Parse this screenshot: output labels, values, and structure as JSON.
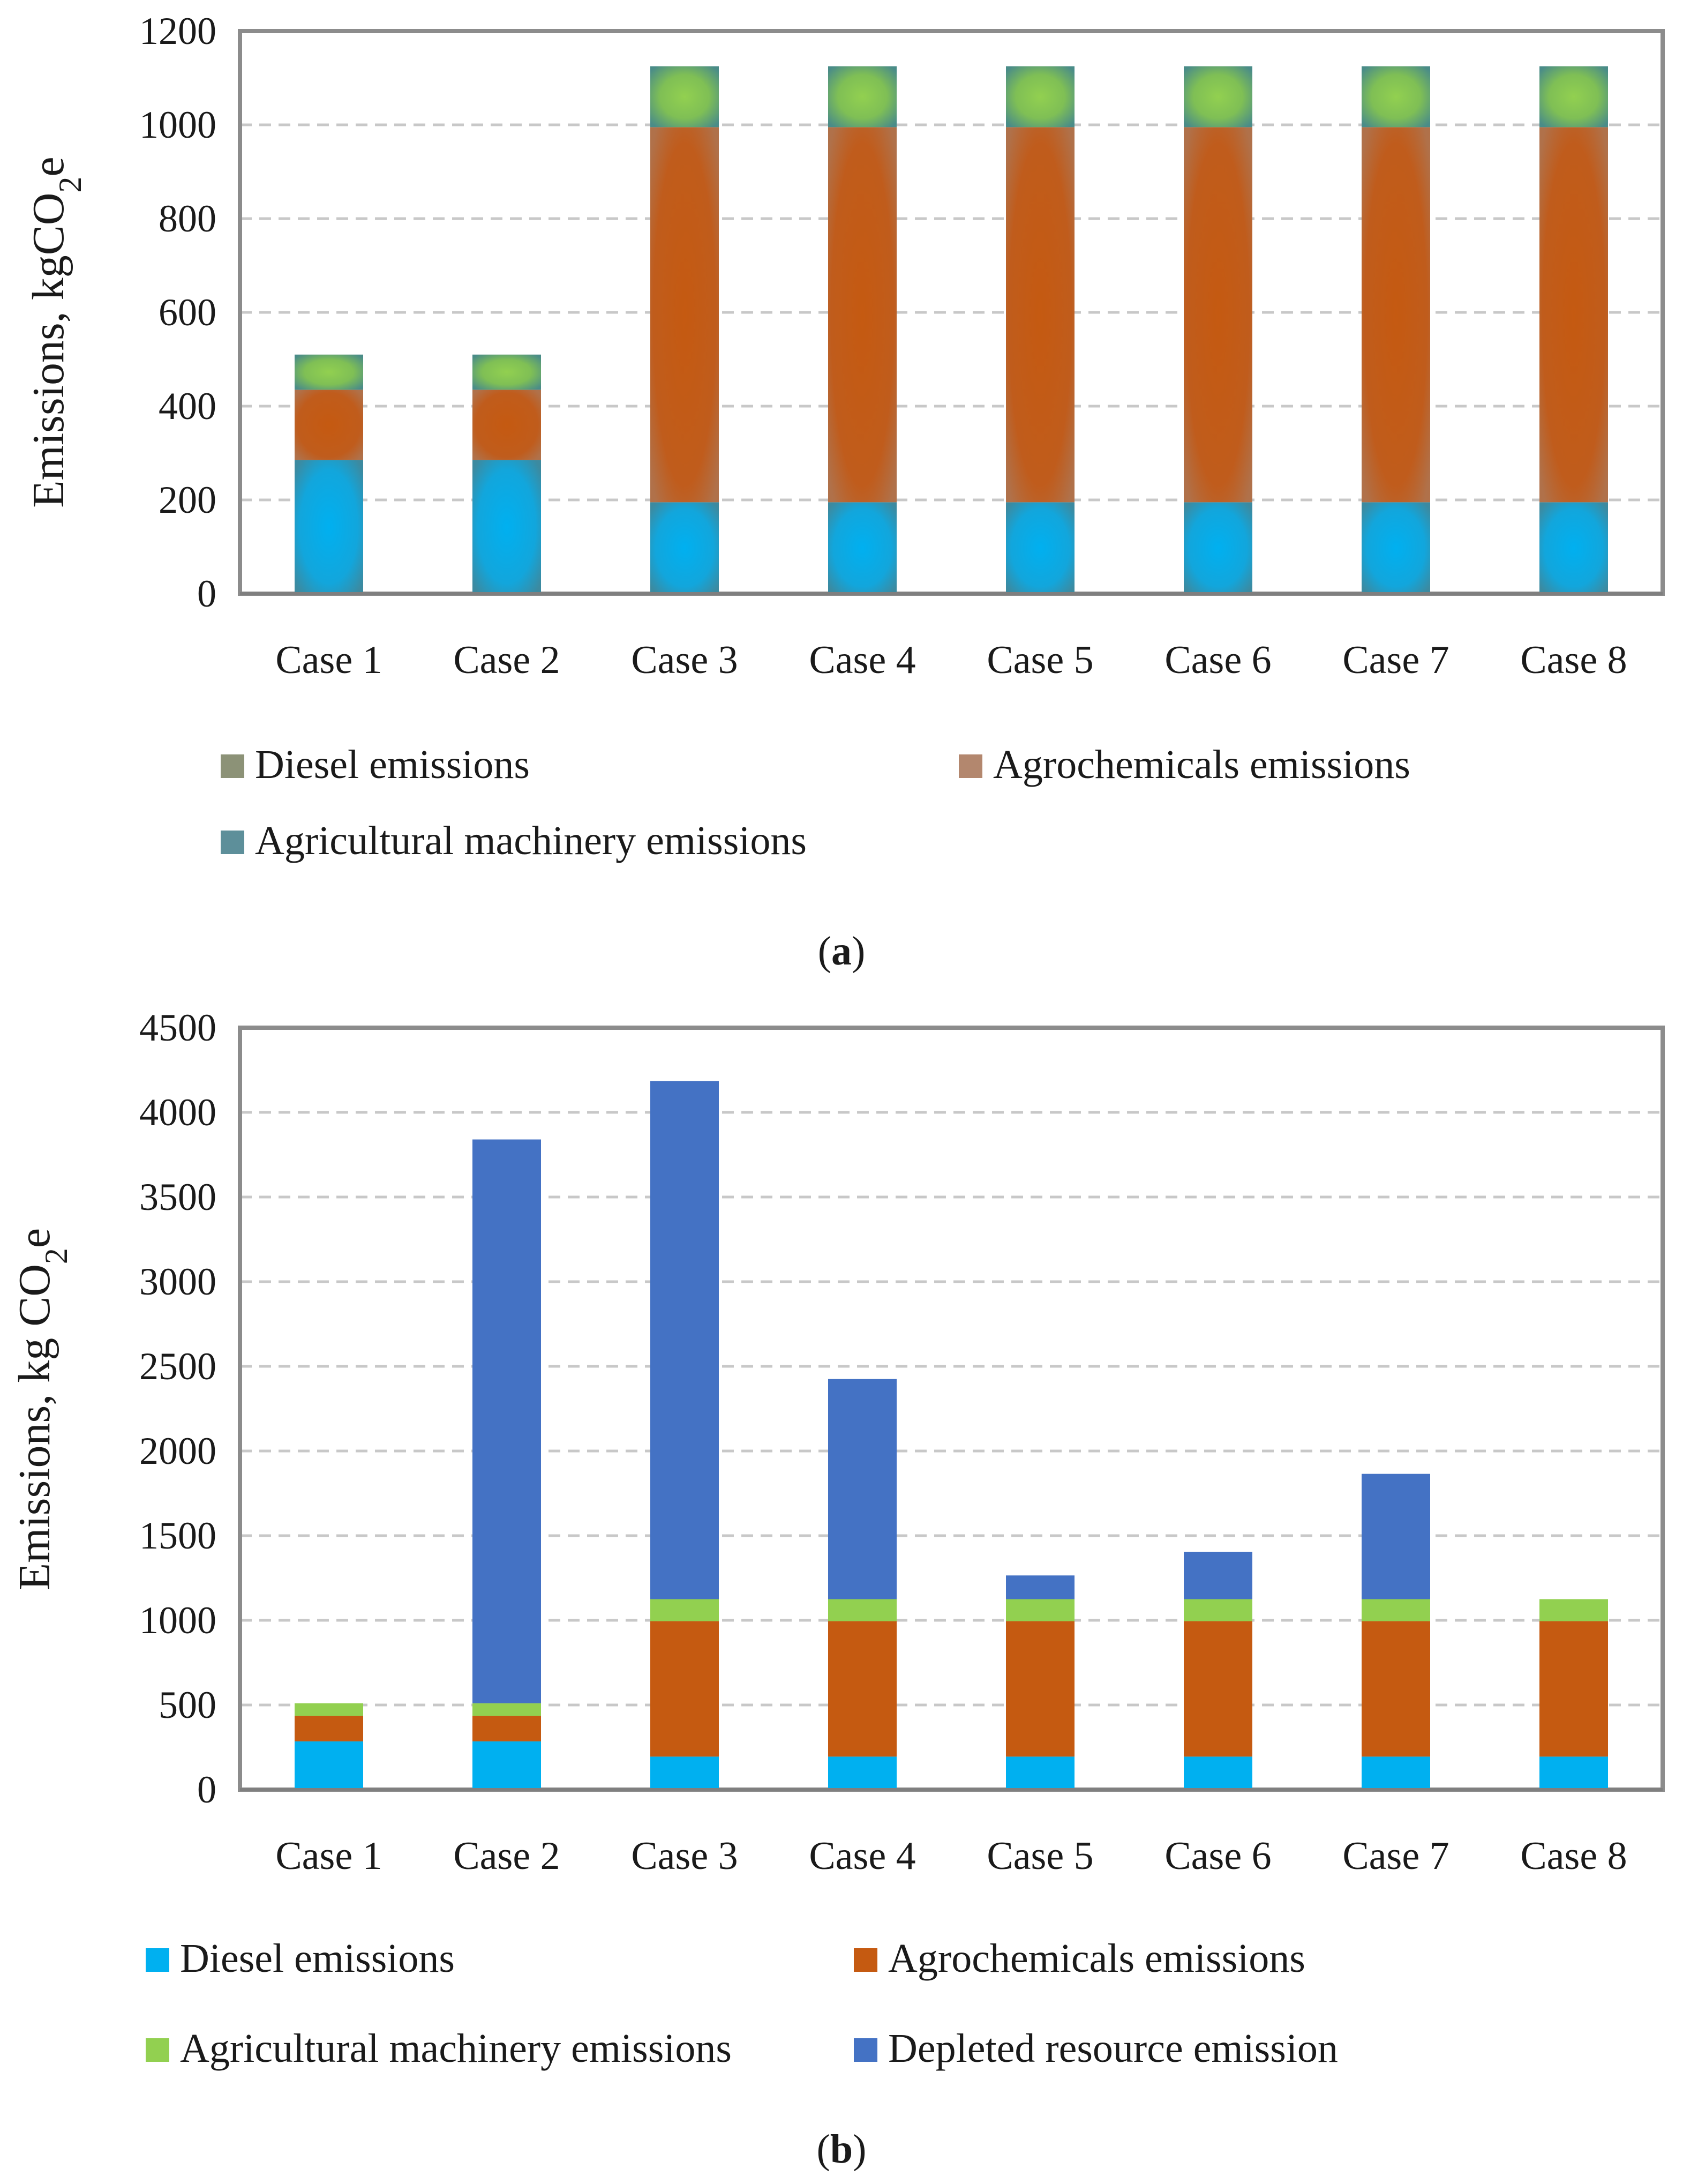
{
  "chart_data": [
    {
      "type": "bar",
      "stacked": true,
      "panel_label": "a",
      "categories": [
        "Case 1",
        "Case 2",
        "Case 3",
        "Case 4",
        "Case 5",
        "Case 6",
        "Case 7",
        "Case 8"
      ],
      "ylabel_prefix": "Emissions, kgCO",
      "ylabel_sub": "2",
      "ylabel_suffix": "e",
      "ylim": [
        0,
        1200
      ],
      "yticks": [
        0,
        200,
        400,
        600,
        800,
        1000,
        1200
      ],
      "grid": true,
      "legend_position": "bottom",
      "series": [
        {
          "name": "Diesel emissions",
          "color": "#00b0f0",
          "legend_color": "#8c9277",
          "values": [
            285,
            285,
            195,
            195,
            195,
            195,
            195,
            195
          ]
        },
        {
          "name": "Agrochemicals emissions",
          "color": "#c55a11",
          "legend_color": "#b3876e",
          "values": [
            150,
            150,
            800,
            800,
            800,
            800,
            800,
            800
          ]
        },
        {
          "name": "Agricultural machinery emissions",
          "color": "#92d050",
          "legend_color": "#5d8f9a",
          "values": [
            75,
            75,
            130,
            130,
            130,
            130,
            130,
            130
          ]
        }
      ]
    },
    {
      "type": "bar",
      "stacked": true,
      "panel_label": "b",
      "categories": [
        "Case 1",
        "Case 2",
        "Case 3",
        "Case 4",
        "Case 5",
        "Case 6",
        "Case 7",
        "Case 8"
      ],
      "ylabel_prefix": "Emissions, kg CO",
      "ylabel_sub": "2",
      "ylabel_suffix": "e",
      "ylim": [
        0,
        4500
      ],
      "yticks": [
        0,
        500,
        1000,
        1500,
        2000,
        2500,
        3000,
        3500,
        4000,
        4500
      ],
      "grid": true,
      "legend_position": "bottom",
      "series": [
        {
          "name": "Diesel emissions",
          "color": "#00b0f0",
          "values": [
            285,
            285,
            195,
            195,
            195,
            195,
            195,
            195
          ]
        },
        {
          "name": "Agrochemicals emissions",
          "color": "#c55a11",
          "values": [
            150,
            150,
            800,
            800,
            800,
            800,
            800,
            800
          ]
        },
        {
          "name": "Agricultural machinery emissions",
          "color": "#92d050",
          "values": [
            75,
            75,
            130,
            130,
            130,
            130,
            130,
            130
          ]
        },
        {
          "name": "Depleted resource emission",
          "color": "#4472c4",
          "values": [
            0,
            3330,
            3060,
            1300,
            140,
            280,
            740,
            0
          ]
        }
      ]
    }
  ]
}
